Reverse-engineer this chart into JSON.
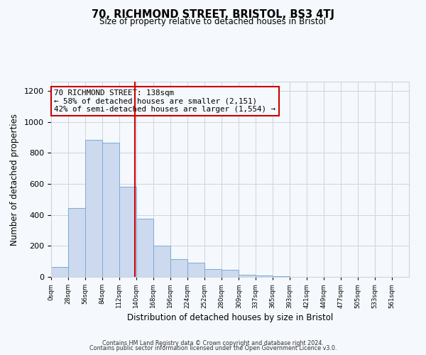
{
  "title": "70, RICHMOND STREET, BRISTOL, BS3 4TJ",
  "subtitle": "Size of property relative to detached houses in Bristol",
  "xlabel": "Distribution of detached houses by size in Bristol",
  "ylabel": "Number of detached properties",
  "bar_values": [
    65,
    445,
    885,
    865,
    580,
    375,
    200,
    115,
    90,
    50,
    45,
    15,
    8,
    3,
    2,
    1,
    1
  ],
  "bin_edges": [
    0,
    28,
    56,
    84,
    112,
    140,
    168,
    196,
    224,
    252,
    280,
    309,
    337,
    365,
    393,
    421,
    449,
    477
  ],
  "tick_labels": [
    "0sqm",
    "28sqm",
    "56sqm",
    "84sqm",
    "112sqm",
    "140sqm",
    "168sqm",
    "196sqm",
    "224sqm",
    "252sqm",
    "280sqm",
    "309sqm",
    "337sqm",
    "365sqm",
    "393sqm",
    "421sqm",
    "449sqm",
    "477sqm",
    "505sqm",
    "533sqm",
    "561sqm"
  ],
  "all_tick_positions": [
    0,
    28,
    56,
    84,
    112,
    140,
    168,
    196,
    224,
    252,
    280,
    309,
    337,
    365,
    393,
    421,
    449,
    477,
    505,
    533,
    561
  ],
  "bar_color": "#cdd9ee",
  "bar_edge_color": "#7aadd4",
  "vline_x": 138,
  "vline_color": "#cc0000",
  "annotation_title": "70 RICHMOND STREET: 138sqm",
  "annotation_line1": "← 58% of detached houses are smaller (2,151)",
  "annotation_line2": "42% of semi-detached houses are larger (1,554) →",
  "annotation_box_color": "#cc0000",
  "ylim": [
    0,
    1260
  ],
  "xlim_max": 589,
  "footer1": "Contains HM Land Registry data © Crown copyright and database right 2024.",
  "footer2": "Contains public sector information licensed under the Open Government Licence v3.0.",
  "bg_color": "#f5f8fc",
  "grid_color": "#ccd5e0"
}
